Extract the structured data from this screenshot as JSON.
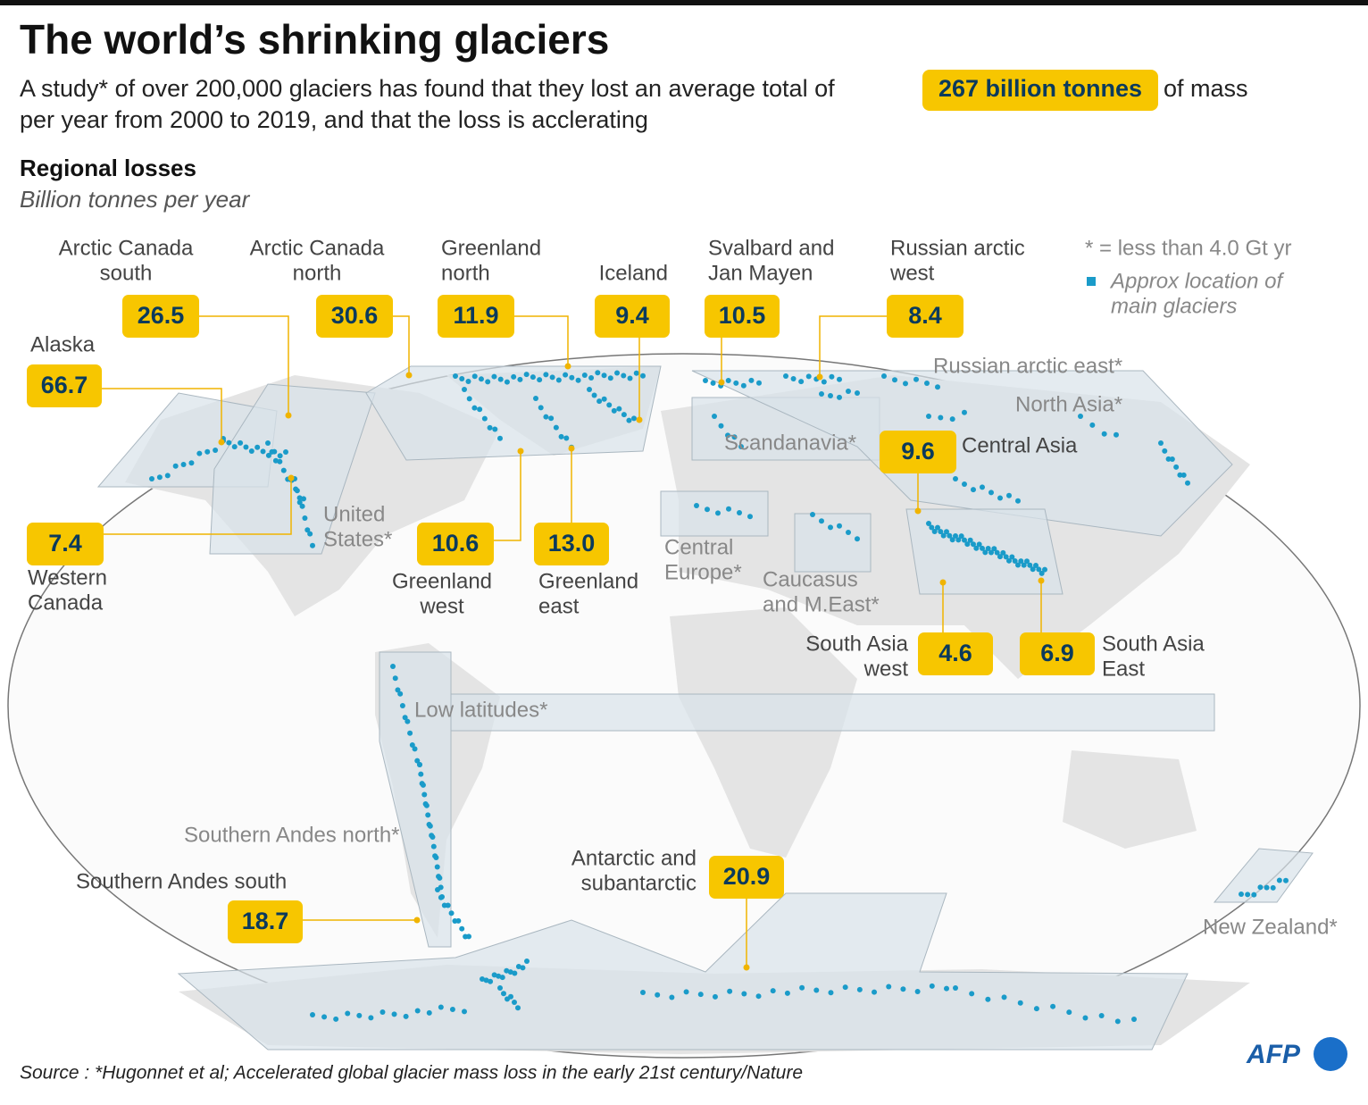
{
  "header": {
    "title": "The world’s shrinking glaciers",
    "subtitle_start": "A study* of over 200,000 glaciers has found that they lost an average total of",
    "highlight": "267 billion tonnes",
    "subtitle_end": "of mass",
    "subtitle_line2": "per year from 2000 to 2019, and that the loss is acclerating",
    "section_title": "Regional losses",
    "unit": "Billion tonnes per year"
  },
  "legend": {
    "note": "* = less than 4.0 Gt yr",
    "marker": [
      "Approx location of",
      "main glaciers"
    ]
  },
  "regions": [
    {
      "lines": [
        "Alaska"
      ],
      "value": "66.7"
    },
    {
      "lines": [
        "Arctic Canada",
        "south"
      ],
      "value": "26.5"
    },
    {
      "lines": [
        "Arctic Canada",
        "north"
      ],
      "value": "30.6"
    },
    {
      "lines": [
        "Greenland",
        "north"
      ],
      "value": "11.9"
    },
    {
      "lines": [
        "Iceland"
      ],
      "value": "9.4"
    },
    {
      "lines": [
        "Svalbard and",
        "Jan Mayen"
      ],
      "value": "10.5"
    },
    {
      "lines": [
        "Russian arctic",
        "west"
      ],
      "value": "8.4"
    },
    {
      "lines": [
        "Central Asia"
      ],
      "value": "9.6"
    },
    {
      "lines": [
        "Western",
        "Canada"
      ],
      "value": "7.4"
    },
    {
      "lines": [
        "Greenland",
        "west"
      ],
      "value": "10.6"
    },
    {
      "lines": [
        "Greenland",
        "east"
      ],
      "value": "13.0"
    },
    {
      "lines": [
        "South Asia",
        "west"
      ],
      "value": "4.6"
    },
    {
      "lines": [
        "South Asia",
        "East"
      ],
      "value": "6.9"
    },
    {
      "lines": [
        "Southern Andes south"
      ],
      "value": "18.7"
    },
    {
      "lines": [
        "Antarctic and",
        "subantarctic"
      ],
      "value": "20.9"
    }
  ],
  "minor_regions": [
    {
      "lines": [
        "Russian arctic east*"
      ]
    },
    {
      "lines": [
        "North Asia*"
      ]
    },
    {
      "lines": [
        "Scandanavia*"
      ]
    },
    {
      "lines": [
        "United",
        "States*"
      ]
    },
    {
      "lines": [
        "Central",
        "Europe*"
      ]
    },
    {
      "lines": [
        "Caucasus",
        "and M.East*"
      ]
    },
    {
      "lines": [
        "Low latitudes*"
      ]
    },
    {
      "lines": [
        "Southern Andes north*"
      ]
    },
    {
      "lines": [
        "New Zealand*"
      ]
    }
  ],
  "footer": {
    "source": "Source : *Hugonnet et al; Accelerated global glacier mass loss in the early 21st century/Nature",
    "logo": "AFP"
  }
}
